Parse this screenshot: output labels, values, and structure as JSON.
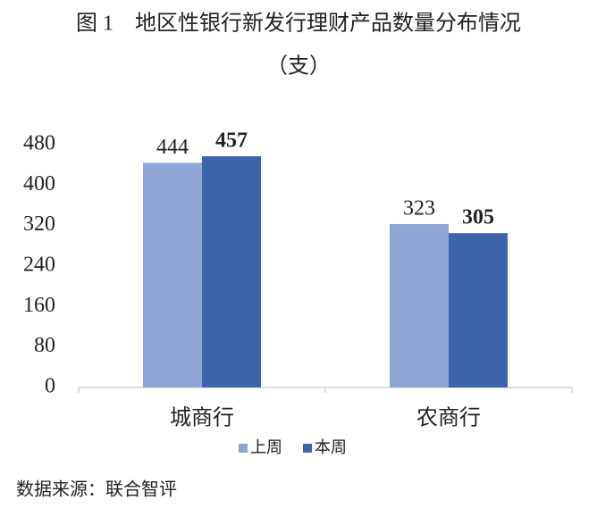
{
  "chart_data": {
    "type": "bar",
    "title": "图 1　地区性银行新发行理财产品数量分布情况",
    "subtitle": "（支）",
    "categories": [
      "城商行",
      "农商行"
    ],
    "series": [
      {
        "name": "上周",
        "color": "#8fa5d3",
        "values": [
          444,
          323
        ],
        "bold_labels": false
      },
      {
        "name": "本周",
        "color": "#3d64ab",
        "values": [
          457,
          305
        ],
        "bold_labels": true
      }
    ],
    "ylim": [
      0,
      480
    ],
    "yticks": [
      0,
      80,
      160,
      240,
      320,
      400,
      480
    ],
    "grid": false,
    "legend": "bottom",
    "source": "数据来源：联合智评"
  }
}
